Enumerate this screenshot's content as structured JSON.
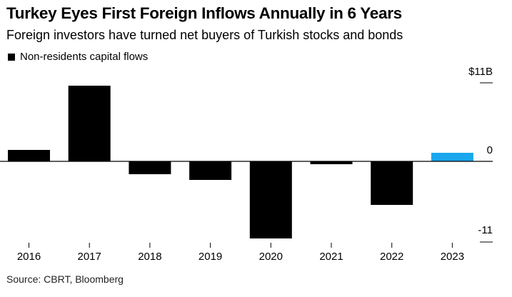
{
  "title": "Turkey Eyes First Foreign Inflows Annually in 6 Years",
  "subtitle": "Foreign investors have turned net buyers of Turkish stocks and bonds",
  "legend": {
    "label": "Non-residents capital flows",
    "swatch_color": "#000000"
  },
  "source": "Source: CBRT, Bloomberg",
  "colors": {
    "bar": "#000000",
    "highlight": "#1aa7ee",
    "axis": "#000000"
  },
  "chart_data": {
    "type": "bar",
    "categories": [
      "2016",
      "2017",
      "2018",
      "2019",
      "2020",
      "2021",
      "2022",
      "2023"
    ],
    "values": [
      1.6,
      10.6,
      -1.8,
      -2.6,
      -10.8,
      -0.4,
      -6.1,
      1.2
    ],
    "highlight_index": 7,
    "ylim": [
      -11,
      11
    ],
    "yticks": [
      {
        "value": 11,
        "label": "$11B"
      },
      {
        "value": 0,
        "label": "0"
      },
      {
        "value": -11,
        "label": "-11"
      }
    ],
    "ytick_position": "right",
    "grid": false,
    "legend_position": "top-left",
    "title": "Turkey Eyes First Foreign Inflows Annually in 6 Years",
    "xlabel": "",
    "ylabel": ""
  }
}
